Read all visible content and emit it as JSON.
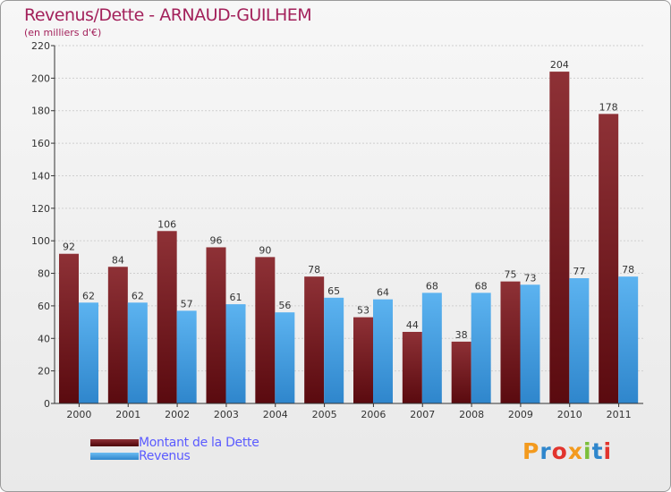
{
  "title": "Revenus/Dette - ARNAUD-GUILHEM",
  "subtitle": "(en milliers d'€)",
  "logo": "Proxiti",
  "chart_data": {
    "type": "bar",
    "title": "Revenus/Dette - ARNAUD-GUILHEM",
    "ylabel": "(en milliers d'€)",
    "xlabel": "",
    "categories": [
      "2000",
      "2001",
      "2002",
      "2003",
      "2004",
      "2005",
      "2006",
      "2007",
      "2008",
      "2009",
      "2010",
      "2011"
    ],
    "series": [
      {
        "name": "Montant de la Dette",
        "color": "#7a1f27",
        "values": [
          92,
          84,
          106,
          96,
          90,
          78,
          53,
          44,
          38,
          75,
          204,
          178
        ]
      },
      {
        "name": "Revenus",
        "color": "#4aa2e6",
        "values": [
          62,
          62,
          57,
          61,
          56,
          65,
          64,
          68,
          68,
          73,
          77,
          78
        ]
      }
    ],
    "ylim": [
      0,
      220
    ],
    "yticks": [
      0,
      20,
      40,
      60,
      80,
      100,
      120,
      140,
      160,
      180,
      200,
      220
    ],
    "grid": true,
    "legend": "bottom-left"
  }
}
